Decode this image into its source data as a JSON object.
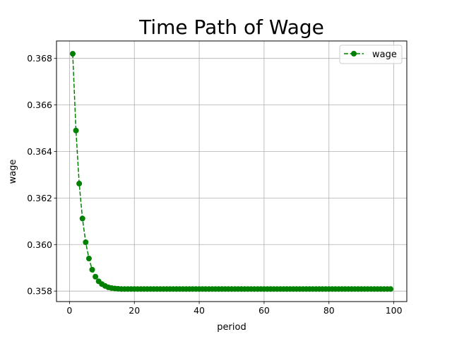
{
  "chart_data": {
    "type": "line",
    "title": "Time Path of Wage",
    "xlabel": "period",
    "ylabel": "wage",
    "xlim": [
      -4,
      104
    ],
    "ylim": [
      0.35755,
      0.36875
    ],
    "xticks": [
      0,
      20,
      40,
      60,
      80,
      100
    ],
    "yticks": [
      0.358,
      0.36,
      0.362,
      0.364,
      0.366,
      0.368
    ],
    "ytick_labels": [
      "0.358",
      "0.360",
      "0.362",
      "0.364",
      "0.366",
      "0.368"
    ],
    "grid": true,
    "legend_position": "top-right",
    "series": [
      {
        "name": "wage",
        "color": "#008000",
        "line_style": "dashed",
        "marker": "circle",
        "x": [
          1,
          2,
          3,
          4,
          5,
          6,
          7,
          8,
          9,
          10,
          11,
          12,
          13,
          14,
          15,
          16,
          17,
          18,
          19,
          20,
          21,
          22,
          23,
          24,
          25,
          26,
          27,
          28,
          29,
          30,
          31,
          32,
          33,
          34,
          35,
          36,
          37,
          38,
          39,
          40,
          41,
          42,
          43,
          44,
          45,
          46,
          47,
          48,
          49,
          50,
          51,
          52,
          53,
          54,
          55,
          56,
          57,
          58,
          59,
          60,
          61,
          62,
          63,
          64,
          65,
          66,
          67,
          68,
          69,
          70,
          71,
          72,
          73,
          74,
          75,
          76,
          77,
          78,
          79,
          80,
          81,
          82,
          83,
          84,
          85,
          86,
          87,
          88,
          89,
          90,
          91,
          92,
          93,
          94,
          95,
          96,
          97,
          98,
          99
        ],
        "y": [
          0.3682,
          0.3649,
          0.36262,
          0.36112,
          0.3601,
          0.3594,
          0.35892,
          0.35862,
          0.35842,
          0.3583,
          0.35822,
          0.35816,
          0.35813,
          0.35811,
          0.3581,
          0.35809,
          0.35809,
          0.35809,
          0.35809,
          0.35809,
          0.35809,
          0.35809,
          0.35809,
          0.35809,
          0.35809,
          0.35809,
          0.35809,
          0.35809,
          0.35809,
          0.35809,
          0.35809,
          0.35809,
          0.35809,
          0.35809,
          0.35809,
          0.35809,
          0.35809,
          0.35809,
          0.35809,
          0.35809,
          0.35809,
          0.35809,
          0.35809,
          0.35809,
          0.35809,
          0.35809,
          0.35809,
          0.35809,
          0.35809,
          0.35809,
          0.35809,
          0.35809,
          0.35809,
          0.35809,
          0.35809,
          0.35809,
          0.35809,
          0.35809,
          0.35809,
          0.35809,
          0.35809,
          0.35809,
          0.35809,
          0.35809,
          0.35809,
          0.35809,
          0.35809,
          0.35809,
          0.35809,
          0.35809,
          0.35809,
          0.35809,
          0.35809,
          0.35809,
          0.35809,
          0.35809,
          0.35809,
          0.35809,
          0.35809,
          0.35809,
          0.35809,
          0.35809,
          0.35809,
          0.35809,
          0.35809,
          0.35809,
          0.35809,
          0.35809,
          0.35809,
          0.35809,
          0.35809,
          0.35809,
          0.35809,
          0.35809,
          0.35809,
          0.35809,
          0.35809,
          0.35809,
          0.35809
        ]
      }
    ]
  }
}
